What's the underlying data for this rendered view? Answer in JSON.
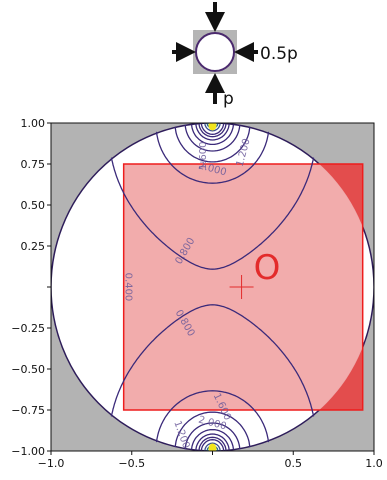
{
  "schematic": {
    "side_load_label": "0.5p",
    "bottom_load_label": "p"
  },
  "chart_data": {
    "type": "contour",
    "xlim": [
      -1.0,
      1.0
    ],
    "ylim": [
      -1.0,
      1.0
    ],
    "x_ticks": [
      -1.0,
      -0.5,
      0.0,
      0.5,
      1.0
    ],
    "x_tick_labels": [
      "−1.0",
      "−0.5",
      "",
      "0.5",
      "1.0"
    ],
    "y_ticks": [
      1.0,
      0.75,
      0.5,
      0.25,
      0.0,
      -0.25,
      -0.5,
      -0.75,
      -1.0
    ],
    "y_tick_labels": [
      "1.00",
      "0.75",
      "0.50",
      "0.25",
      "",
      "−0.25",
      "−0.50",
      "−0.75",
      "−1.00"
    ],
    "grid": false,
    "colors": {
      "outside_disk": "#b3b3b3",
      "disk": "#ffffff",
      "disk_edge": "#2e1d5a",
      "contour_main": "#3b2a7a",
      "rect_fill": "#f2aaaa",
      "rect_edge": "#ee1d1d",
      "corner_fill": "#e34d4d",
      "marker": "#e32b2b"
    },
    "disk": {
      "center": [
        0.0,
        0.0
      ],
      "radius": 1.0
    },
    "rectangle": {
      "x": [
        -0.55,
        0.93
      ],
      "y": [
        -0.75,
        0.75
      ]
    },
    "marker": {
      "x": 0.18,
      "y": 0.0,
      "label": "O"
    },
    "contour_levels": [
      {
        "value": 0.4,
        "label": "0.400"
      },
      {
        "value": 0.8,
        "label": "0.800"
      },
      {
        "value": 1.2,
        "label": "1.200"
      },
      {
        "value": 1.6,
        "label": "1.600"
      },
      {
        "value": 2.0,
        "label": "2.000"
      }
    ],
    "contour_label_instances": [
      {
        "text": "0.400",
        "x": -0.52,
        "y": 0.0,
        "angle": 90
      },
      {
        "text": "0.800",
        "x": -0.17,
        "y": 0.22,
        "angle": -60
      },
      {
        "text": "0.800",
        "x": -0.17,
        "y": -0.22,
        "angle": 60
      },
      {
        "text": "1.200",
        "x": 0.19,
        "y": 0.82,
        "angle": -75
      },
      {
        "text": "1.600",
        "x": -0.06,
        "y": 0.8,
        "angle": -90
      },
      {
        "text": "2.000",
        "x": 0.0,
        "y": 0.72,
        "angle": 15
      },
      {
        "text": "1.600",
        "x": 0.06,
        "y": -0.73,
        "angle": 65
      },
      {
        "text": "2.000",
        "x": 0.0,
        "y": -0.83,
        "angle": 15
      },
      {
        "text": "1.200",
        "x": -0.19,
        "y": -0.9,
        "angle": 70
      }
    ]
  }
}
